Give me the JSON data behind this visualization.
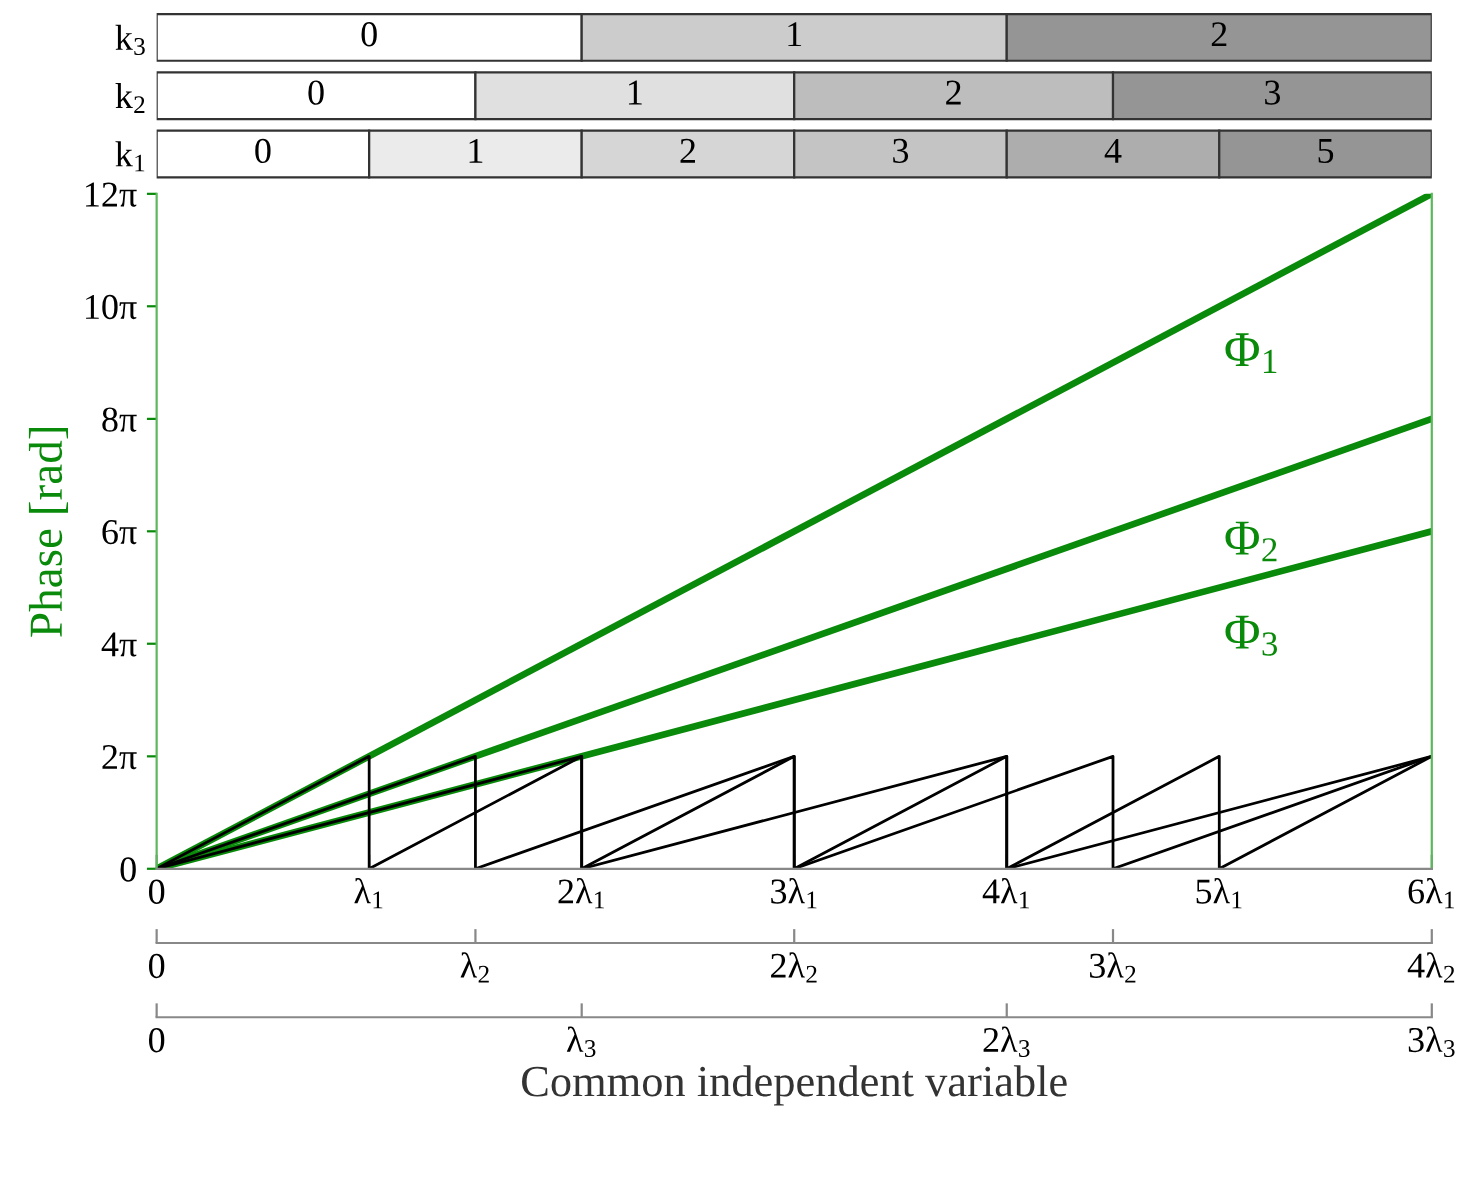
{
  "chart_data": [
    {
      "type": "bar",
      "orientation": "horizontal",
      "stacked": true,
      "categories": [
        "k$_{3}$",
        "k$_{2}$",
        "k$_{1}$"
      ],
      "xlim": [
        0,
        6
      ],
      "tick_labels": "y",
      "grid": false,
      "legend": false,
      "series": [
        {
          "colors": [
            "#ffffff",
            "#ffffff",
            "#ffffff"
          ],
          "values": [
            2,
            1.5,
            1
          ]
        },
        {
          "colors": [
            "#cccccc",
            "#e0e0e0",
            "#ebebeb"
          ],
          "values": [
            2,
            1.5,
            1
          ]
        },
        {
          "colors": [
            "#959595",
            "#bdbdbd",
            "#d6d6d6"
          ],
          "values": [
            2,
            1.5,
            1
          ]
        },
        {
          "colors": [
            "#959595",
            "#959595",
            "#c4c4c4"
          ],
          "values": [
            null,
            1.5,
            1
          ]
        },
        {
          "colors": [
            "#959595",
            "#959595",
            "#adadad"
          ],
          "values": [
            null,
            null,
            1
          ]
        },
        {
          "colors": [
            "#959595",
            "#959595",
            "#959595"
          ],
          "values": [
            null,
            null,
            1
          ]
        }
      ],
      "annotations": [
        {
          "text": "0",
          "x": 1,
          "y": "k$_{3}$"
        },
        {
          "text": "1",
          "x": 3,
          "y": "k$_{3}$"
        },
        {
          "text": "2",
          "x": 5,
          "y": "k$_{3}$"
        },
        {
          "text": "0",
          "x": 0.75,
          "y": "k$_{2}$"
        },
        {
          "text": "1",
          "x": 2.25,
          "y": "k$_{2}$"
        },
        {
          "text": "2",
          "x": 3.75,
          "y": "k$_{2}$"
        },
        {
          "text": "3",
          "x": 5.25,
          "y": "k$_{2}$"
        },
        {
          "text": "0",
          "x": 0.5,
          "y": "k$_{1}$"
        },
        {
          "text": "1",
          "x": 1.5,
          "y": "k$_{1}$"
        },
        {
          "text": "2",
          "x": 2.5,
          "y": "k$_{1}$"
        },
        {
          "text": "3",
          "x": 3.5,
          "y": "k$_{1}$"
        },
        {
          "text": "4",
          "x": 4.5,
          "y": "k$_{1}$"
        },
        {
          "text": "5",
          "x": 5.5,
          "y": "k$_{1}$"
        }
      ]
    },
    {
      "type": "line",
      "xlabel": "Common independent variable",
      "ylabel": "Phase [rad]",
      "xlim": [
        0,
        6
      ],
      "ylim": [
        0,
        37.7
      ],
      "grid": false,
      "legend": false,
      "marker": "none",
      "xticks": [
        0,
        {
          "value": 1,
          "label": "λ$_{1}$"
        },
        {
          "value": 2,
          "label": "2λ$_{1}$"
        },
        {
          "value": 3,
          "label": "3λ$_{1}$"
        },
        {
          "value": 4,
          "label": "4λ$_{1}$"
        },
        {
          "value": 5,
          "label": "5λ$_{1}$"
        },
        {
          "value": 6,
          "label": "6λ$_{1}$"
        }
      ],
      "x2lim": [
        0,
        6
      ],
      "x2ticks": [
        0,
        {
          "value": 1.5,
          "label": "λ$_{2}$"
        },
        {
          "value": 3,
          "label": "2λ$_{2}$"
        },
        {
          "value": 4.5,
          "label": "3λ$_{2}$"
        },
        {
          "value": 6,
          "label": "4λ$_{2}$"
        }
      ],
      "yticks": [
        0,
        {
          "value": 6.28,
          "label": "2π"
        },
        {
          "value": 12.57,
          "label": "4π"
        },
        {
          "value": 18.85,
          "label": "6π"
        },
        {
          "value": 25.13,
          "label": "8π"
        },
        {
          "value": 31.42,
          "label": "10π"
        },
        {
          "value": 37.7,
          "label": "12π"
        }
      ],
      "annotations": [
        "Φ$_{1}$",
        "Φ$_{2}$",
        "Φ$_{3}$",
        {
          "text": "0",
          "x": 0
        },
        {
          "text": "λ$_{3}$",
          "x": 2
        },
        {
          "text": "2λ$_{3}$",
          "x": 4
        },
        {
          "text": "3λ$_{3}$",
          "x": 6
        }
      ],
      "series": [
        {
          "color": "#0a8a0a",
          "line_style": "solid",
          "x": [
            0,
            6
          ],
          "values": [
            0,
            37.7
          ]
        },
        {
          "color": "#0a8a0a",
          "line_style": "solid",
          "x": [
            0,
            6
          ],
          "values": [
            0,
            25.13
          ]
        },
        {
          "color": "#0a8a0a",
          "line_style": "solid",
          "x": [
            0,
            6
          ],
          "values": [
            0,
            18.85
          ]
        },
        {
          "color": "#000000",
          "line_style": "solid",
          "x": [
            0,
            1,
            1,
            2,
            2,
            3,
            3,
            4,
            4,
            5,
            5,
            6
          ],
          "values": [
            0,
            6.28,
            0,
            6.28,
            0,
            6.28,
            0,
            6.28,
            0,
            6.28,
            0,
            6.28
          ]
        },
        {
          "color": "#000000",
          "line_style": "solid",
          "x": [
            0,
            1.5,
            1.5,
            3,
            3,
            4.5,
            4.5,
            6
          ],
          "values": [
            0,
            6.28,
            0,
            6.28,
            0,
            6.28,
            0,
            6.28
          ]
        },
        {
          "color": "#000000",
          "line_style": "solid",
          "x": [
            0,
            2,
            2,
            4,
            4,
            6
          ],
          "values": [
            0,
            6.28,
            0,
            6.28,
            0,
            6.28
          ]
        }
      ]
    }
  ]
}
